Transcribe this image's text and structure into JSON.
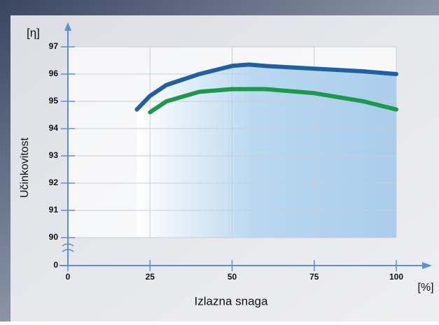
{
  "chart_data": {
    "type": "line",
    "y_label_unit": "[η]",
    "ylabel": "Učinkovitost",
    "xlabel": "Izlazna snaga",
    "x_label_unit": "[%]",
    "xlim": [
      0,
      100
    ],
    "xticks": [
      0,
      25,
      50,
      75,
      100
    ],
    "ylim": [
      0,
      97
    ],
    "yticks": [
      0,
      90,
      91,
      92,
      93,
      94,
      95,
      96,
      97
    ],
    "y_break": [
      0,
      90
    ],
    "grid": true,
    "series": [
      {
        "color": "#1f5fa8",
        "x": [
          21,
          25,
          30,
          40,
          50,
          55,
          60,
          75,
          90,
          100
        ],
        "values": [
          94.7,
          95.2,
          95.6,
          96.0,
          96.3,
          96.35,
          96.3,
          96.2,
          96.1,
          96.0
        ]
      },
      {
        "color": "#1a9a4a",
        "x": [
          25,
          30,
          40,
          50,
          60,
          75,
          90,
          100
        ],
        "values": [
          94.6,
          95.0,
          95.35,
          95.45,
          95.45,
          95.3,
          95.0,
          94.7
        ]
      }
    ]
  }
}
